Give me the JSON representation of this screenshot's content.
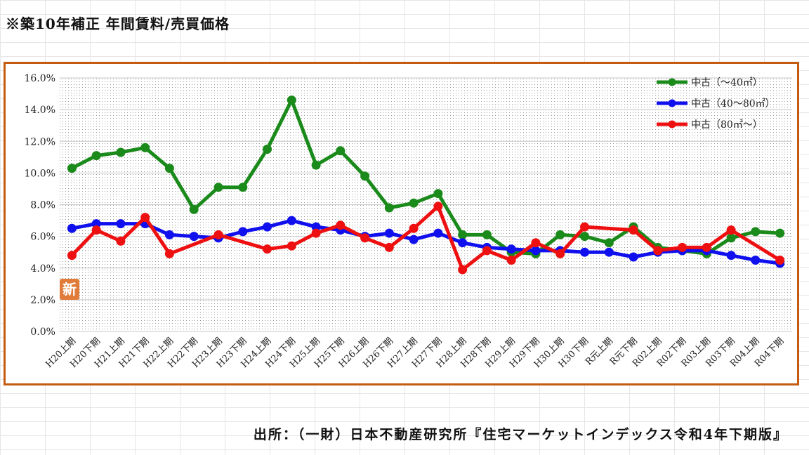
{
  "header": {
    "title": "※築10年補正 年間賃料/売買価格"
  },
  "footer": {
    "source": "出所：（一財）日本不動産研究所『住宅マーケットインデックス令和4年下期版』"
  },
  "badge": {
    "text": "新"
  },
  "colors": {
    "frame": "#c55a11",
    "badge": "#e07b39"
  },
  "chart_data": {
    "type": "line",
    "title": "",
    "xlabel": "",
    "ylabel": "",
    "ylim": [
      0,
      0.16
    ],
    "y_ticks": [
      0,
      0.02,
      0.04,
      0.06,
      0.08,
      0.1,
      0.12,
      0.14,
      0.16
    ],
    "y_tick_labels": [
      "0.0%",
      "2.0%",
      "4.0%",
      "6.0%",
      "8.0%",
      "10.0%",
      "12.0%",
      "14.0%",
      "16.0%"
    ],
    "grid": "dotted",
    "legend": "top-right",
    "categories": [
      "H20上期",
      "H20下期",
      "H21上期",
      "H21下期",
      "H22上期",
      "H22下期",
      "H23上期",
      "H23下期",
      "H24上期",
      "H24下期",
      "H25上期",
      "H25下期",
      "H26上期",
      "H26下期",
      "H27上期",
      "H27下期",
      "H28上期",
      "H28下期",
      "H29上期",
      "H29下期",
      "H30上期",
      "H30下期",
      "R元上期",
      "R元下期",
      "R02上期",
      "R02下期",
      "R03上期",
      "R03下期",
      "R04上期",
      "R04下期"
    ],
    "series": [
      {
        "name": "中古（～40㎡）",
        "color": "#1a8a1a",
        "values": [
          0.103,
          0.111,
          0.113,
          0.116,
          0.103,
          0.077,
          0.091,
          0.091,
          0.115,
          0.146,
          0.105,
          0.114,
          0.098,
          0.078,
          0.081,
          0.087,
          0.061,
          0.061,
          0.05,
          0.049,
          0.061,
          0.06,
          0.056,
          0.066,
          0.053,
          0.051,
          0.049,
          0.059,
          0.063,
          0.062
        ]
      },
      {
        "name": "中古（40～80㎡）",
        "color": "#1010ee",
        "values": [
          0.065,
          0.068,
          0.068,
          0.068,
          0.061,
          0.06,
          0.059,
          0.063,
          0.066,
          0.07,
          0.066,
          0.064,
          0.06,
          0.062,
          0.058,
          0.062,
          0.056,
          0.053,
          0.052,
          0.051,
          0.051,
          0.05,
          0.05,
          0.047,
          0.05,
          0.051,
          0.051,
          0.048,
          0.045,
          0.043
        ]
      },
      {
        "name": "中古（80㎡～）",
        "color": "#ee1010",
        "values": [
          0.048,
          0.064,
          0.057,
          0.072,
          0.049,
          null,
          0.061,
          null,
          0.052,
          0.054,
          0.062,
          0.067,
          0.059,
          0.053,
          0.065,
          0.079,
          0.039,
          0.051,
          0.045,
          0.056,
          0.049,
          0.066,
          null,
          0.064,
          0.051,
          0.053,
          0.053,
          0.064,
          null,
          0.045
        ]
      }
    ]
  }
}
